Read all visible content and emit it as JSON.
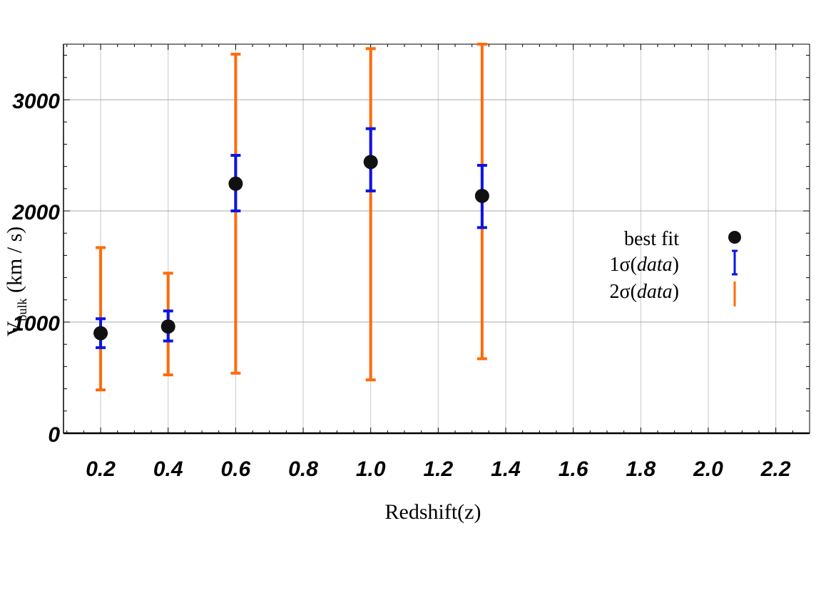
{
  "chart_data": {
    "type": "scatter",
    "xlabel": "Redshift(z)",
    "ylabel_main": "V",
    "ylabel_sub": "bulk",
    "ylabel_unit": " (km / s)",
    "xlim": [
      0.09,
      2.3
    ],
    "ylim": [
      0,
      3500
    ],
    "x_ticks": [
      0.2,
      0.4,
      0.6,
      0.8,
      1.0,
      1.2,
      1.4,
      1.6,
      1.8,
      2.0,
      2.2
    ],
    "x_tick_labels": [
      "0.2",
      "0.4",
      "0.6",
      "0.8",
      "1.0",
      "1.2",
      "1.4",
      "1.6",
      "1.8",
      "2.0",
      "2.2"
    ],
    "y_ticks": [
      0,
      1000,
      2000,
      3000
    ],
    "y_tick_labels": [
      "0",
      "1000",
      "2000",
      "3000"
    ],
    "grid": true,
    "series": [
      {
        "name": "best fit",
        "x": [
          0.2,
          0.4,
          0.6,
          1.0,
          1.33
        ],
        "y": [
          900,
          960,
          2245,
          2440,
          2135
        ]
      }
    ],
    "error_1sigma": {
      "name": "1σ(data)",
      "low": [
        770,
        830,
        2000,
        2180,
        1850
      ],
      "high": [
        1030,
        1100,
        2500,
        2740,
        2410
      ]
    },
    "error_2sigma": {
      "name": "2σ(data)",
      "low": [
        390,
        525,
        540,
        480,
        670
      ],
      "high": [
        1670,
        1440,
        3410,
        3460,
        3600
      ]
    },
    "legend": {
      "placement": "right-middle",
      "items": [
        {
          "label": "best fit",
          "marker": "dot"
        },
        {
          "label_prefix": "1σ(",
          "label_italic": "data",
          "label_suffix": ")",
          "marker": "blue-bar"
        },
        {
          "label_prefix": "2σ(",
          "label_italic": "data",
          "label_suffix": ")",
          "marker": "orange-bar"
        }
      ]
    },
    "colors": {
      "point": "#111111",
      "sigma1": "#0a14e6",
      "sigma2": "#ff6a0a",
      "grid": "#c8c8c8",
      "axis": "#000000"
    }
  }
}
